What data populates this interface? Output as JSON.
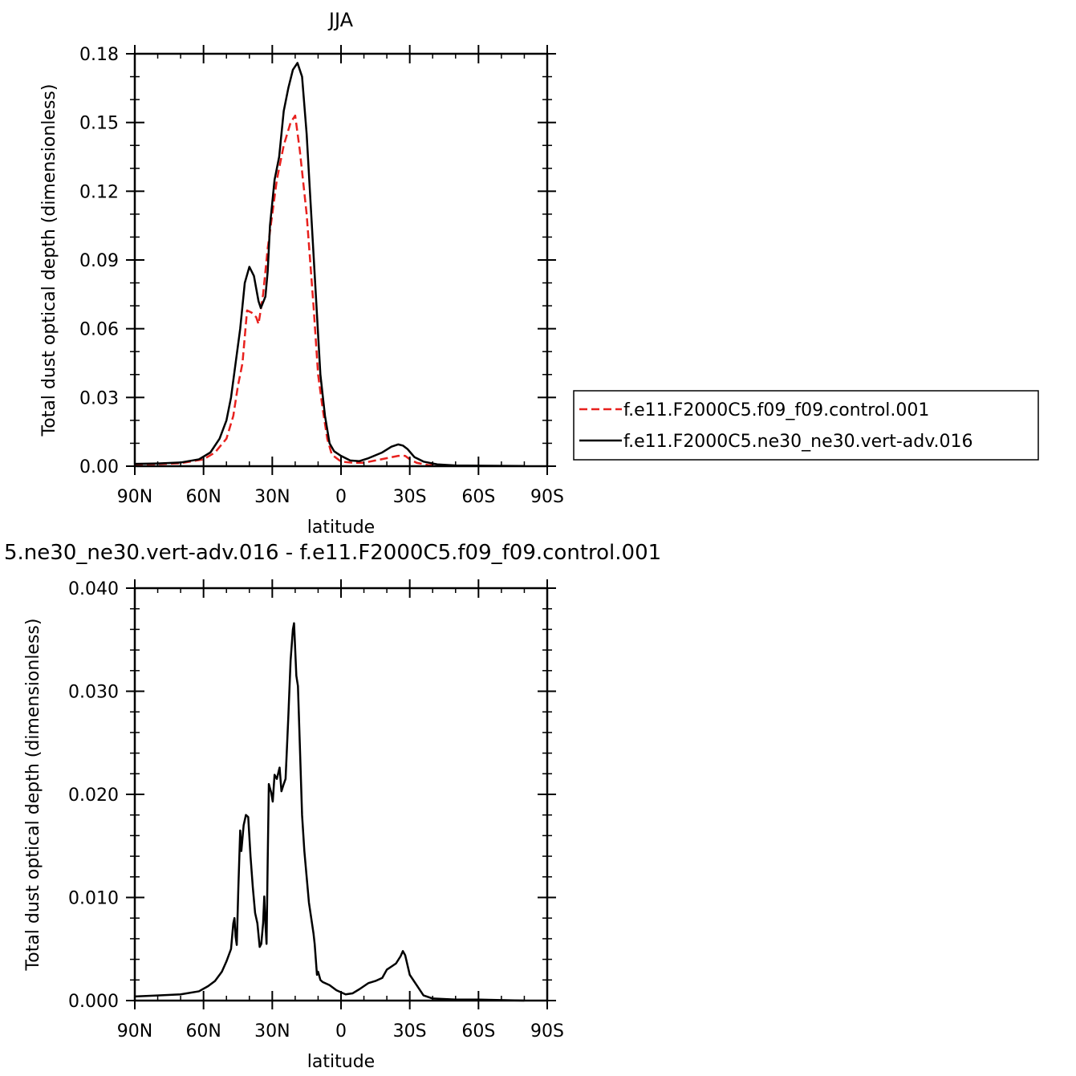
{
  "chart_data": [
    {
      "type": "line",
      "title": "JJA",
      "xlabel": "latitude",
      "ylabel": "Total dust optical depth (dimensionless)",
      "xlim": [
        90,
        -90
      ],
      "ylim": [
        0,
        0.18
      ],
      "xticks": [
        {
          "value": 90,
          "label": "90N"
        },
        {
          "value": 60,
          "label": "60N"
        },
        {
          "value": 30,
          "label": "30N"
        },
        {
          "value": 0,
          "label": "0"
        },
        {
          "value": -30,
          "label": "30S"
        },
        {
          "value": -60,
          "label": "60S"
        },
        {
          "value": -90,
          "label": "90S"
        }
      ],
      "yticks": [
        {
          "value": 0,
          "label": "0.00"
        },
        {
          "value": 0.03,
          "label": "0.03"
        },
        {
          "value": 0.06,
          "label": "0.06"
        },
        {
          "value": 0.09,
          "label": "0.09"
        },
        {
          "value": 0.12,
          "label": "0.12"
        },
        {
          "value": 0.15,
          "label": "0.15"
        },
        {
          "value": 0.18,
          "label": "0.18"
        }
      ],
      "legend_position": "right",
      "series": [
        {
          "name": "f.e11.F2000C5.f09_f09.control.001",
          "color": "#e8211e",
          "style": "dashed",
          "points": [
            [
              90,
              0.0008
            ],
            [
              80,
              0.0009
            ],
            [
              70,
              0.0013
            ],
            [
              60,
              0.003
            ],
            [
              55,
              0.006
            ],
            [
              50,
              0.012
            ],
            [
              47,
              0.022
            ],
            [
              45,
              0.035
            ],
            [
              43,
              0.045
            ],
            [
              41,
              0.068
            ],
            [
              39,
              0.067
            ],
            [
              37,
              0.065
            ],
            [
              36,
              0.062
            ],
            [
              34,
              0.075
            ],
            [
              32,
              0.095
            ],
            [
              30,
              0.11
            ],
            [
              28,
              0.125
            ],
            [
              25,
              0.14
            ],
            [
              22,
              0.15
            ],
            [
              20,
              0.153
            ],
            [
              18,
              0.138
            ],
            [
              15,
              0.11
            ],
            [
              12,
              0.07
            ],
            [
              10,
              0.04
            ],
            [
              8,
              0.025
            ],
            [
              6,
              0.012
            ],
            [
              4,
              0.005
            ],
            [
              0,
              0.002
            ],
            [
              -5,
              0.0015
            ],
            [
              -10,
              0.0015
            ],
            [
              -15,
              0.0025
            ],
            [
              -20,
              0.0035
            ],
            [
              -25,
              0.0045
            ],
            [
              -28,
              0.0045
            ],
            [
              -30,
              0.003
            ],
            [
              -33,
              0.0015
            ],
            [
              -38,
              0.0005
            ],
            [
              -45,
              0.0002
            ],
            [
              -60,
              0.0001
            ],
            [
              -80,
              0.0001
            ]
          ]
        },
        {
          "name": "f.e11.F2000C5.ne30_ne30.vert-adv.016",
          "color": "#000000",
          "style": "solid",
          "points": [
            [
              90,
              0.001
            ],
            [
              80,
              0.0012
            ],
            [
              70,
              0.0016
            ],
            [
              62,
              0.003
            ],
            [
              57,
              0.006
            ],
            [
              53,
              0.012
            ],
            [
              50,
              0.02
            ],
            [
              48,
              0.03
            ],
            [
              46,
              0.045
            ],
            [
              44,
              0.06
            ],
            [
              42,
              0.08
            ],
            [
              40,
              0.087
            ],
            [
              38,
              0.083
            ],
            [
              36,
              0.072
            ],
            [
              35,
              0.069
            ],
            [
              33,
              0.074
            ],
            [
              32,
              0.085
            ],
            [
              31,
              0.105
            ],
            [
              29,
              0.125
            ],
            [
              27,
              0.135
            ],
            [
              25,
              0.155
            ],
            [
              23,
              0.165
            ],
            [
              21,
              0.173
            ],
            [
              19,
              0.176
            ],
            [
              17,
              0.17
            ],
            [
              15,
              0.145
            ],
            [
              13,
              0.11
            ],
            [
              11,
              0.075
            ],
            [
              9,
              0.04
            ],
            [
              7,
              0.022
            ],
            [
              5,
              0.01
            ],
            [
              3,
              0.0065
            ],
            [
              0,
              0.0045
            ],
            [
              -4,
              0.0025
            ],
            [
              -8,
              0.0022
            ],
            [
              -12,
              0.0035
            ],
            [
              -18,
              0.006
            ],
            [
              -22,
              0.0085
            ],
            [
              -25,
              0.0095
            ],
            [
              -27,
              0.009
            ],
            [
              -29,
              0.0075
            ],
            [
              -32,
              0.004
            ],
            [
              -36,
              0.002
            ],
            [
              -42,
              0.0008
            ],
            [
              -50,
              0.0003
            ],
            [
              -60,
              0.0002
            ],
            [
              -80,
              0.0001
            ]
          ]
        }
      ]
    },
    {
      "type": "line",
      "title": "5.ne30_ne30.vert-adv.016 - f.e11.F2000C5.f09_f09.control.001",
      "xlabel": "latitude",
      "ylabel": "Total dust optical depth (dimensionless)",
      "xlim": [
        90,
        -90
      ],
      "ylim": [
        0,
        0.04
      ],
      "xticks": [
        {
          "value": 90,
          "label": "90N"
        },
        {
          "value": 60,
          "label": "60N"
        },
        {
          "value": 30,
          "label": "30N"
        },
        {
          "value": 0,
          "label": "0"
        },
        {
          "value": -30,
          "label": "30S"
        },
        {
          "value": -60,
          "label": "60S"
        },
        {
          "value": -90,
          "label": "90S"
        }
      ],
      "yticks": [
        {
          "value": 0,
          "label": "0.000"
        },
        {
          "value": 0.01,
          "label": "0.010"
        },
        {
          "value": 0.02,
          "label": "0.020"
        },
        {
          "value": 0.03,
          "label": "0.030"
        },
        {
          "value": 0.04,
          "label": "0.040"
        }
      ],
      "series": [
        {
          "color": "#000000",
          "style": "solid",
          "points": [
            [
              90,
              0.0004
            ],
            [
              80,
              0.0005
            ],
            [
              70,
              0.0006
            ],
            [
              62,
              0.0009
            ],
            [
              58,
              0.0014
            ],
            [
              55,
              0.0019
            ],
            [
              52,
              0.0028
            ],
            [
              50,
              0.0038
            ],
            [
              48,
              0.005
            ],
            [
              47,
              0.0075
            ],
            [
              46.5,
              0.008
            ],
            [
              46,
              0.0062
            ],
            [
              45.5,
              0.0054
            ],
            [
              44.8,
              0.011
            ],
            [
              44,
              0.0165
            ],
            [
              43.5,
              0.0145
            ],
            [
              42.5,
              0.017
            ],
            [
              41.5,
              0.018
            ],
            [
              40.5,
              0.0178
            ],
            [
              39.5,
              0.014
            ],
            [
              38.5,
              0.011
            ],
            [
              37.5,
              0.0085
            ],
            [
              36.5,
              0.0075
            ],
            [
              35.5,
              0.0052
            ],
            [
              34.8,
              0.0055
            ],
            [
              34,
              0.0075
            ],
            [
              33.5,
              0.0101
            ],
            [
              33,
              0.0075
            ],
            [
              32.5,
              0.0055
            ],
            [
              32,
              0.0135
            ],
            [
              31.5,
              0.021
            ],
            [
              30.5,
              0.0202
            ],
            [
              29.8,
              0.0193
            ],
            [
              29,
              0.0219
            ],
            [
              28,
              0.0215
            ],
            [
              26.8,
              0.0226
            ],
            [
              26,
              0.0203
            ],
            [
              25,
              0.021
            ],
            [
              24.2,
              0.0215
            ],
            [
              23,
              0.0275
            ],
            [
              22,
              0.033
            ],
            [
              21,
              0.036
            ],
            [
              20.5,
              0.0366
            ],
            [
              19.5,
              0.0315
            ],
            [
              18.8,
              0.0305
            ],
            [
              18,
              0.025
            ],
            [
              17,
              0.018
            ],
            [
              16,
              0.0145
            ],
            [
              14,
              0.0095
            ],
            [
              12,
              0.0065
            ],
            [
              11.5,
              0.0055
            ],
            [
              10.5,
              0.0025
            ],
            [
              10,
              0.0028
            ],
            [
              9,
              0.002
            ],
            [
              8,
              0.0018
            ],
            [
              5,
              0.0015
            ],
            [
              2,
              0.001
            ],
            [
              -2,
              0.0006
            ],
            [
              -5,
              0.0007
            ],
            [
              -8,
              0.0011
            ],
            [
              -12,
              0.0017
            ],
            [
              -15,
              0.0019
            ],
            [
              -18,
              0.0022
            ],
            [
              -20,
              0.003
            ],
            [
              -22,
              0.0033
            ],
            [
              -24,
              0.0036
            ],
            [
              -26,
              0.0043
            ],
            [
              -27,
              0.0048
            ],
            [
              -28,
              0.0044
            ],
            [
              -30,
              0.0025
            ],
            [
              -33,
              0.0015
            ],
            [
              -36,
              0.0005
            ],
            [
              -40,
              0.0002
            ],
            [
              -50,
              0.0001
            ],
            [
              -60,
              0.0001
            ],
            [
              -80,
              0.0
            ]
          ]
        }
      ]
    }
  ]
}
